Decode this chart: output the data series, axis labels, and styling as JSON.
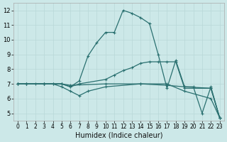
{
  "xlabel": "Humidex (Indice chaleur)",
  "xlim": [
    -0.5,
    23.5
  ],
  "ylim": [
    4.5,
    12.5
  ],
  "xticks": [
    0,
    1,
    2,
    3,
    4,
    5,
    6,
    7,
    8,
    9,
    10,
    11,
    12,
    13,
    14,
    15,
    16,
    17,
    18,
    19,
    20,
    21,
    22,
    23
  ],
  "yticks": [
    5,
    6,
    7,
    8,
    9,
    10,
    11,
    12
  ],
  "bg_color": "#cce8e8",
  "line_color": "#2a7070",
  "grid_color": "#b8d8d8",
  "series": [
    {
      "x": [
        0,
        1,
        2,
        3,
        4,
        5,
        6,
        7,
        8,
        9,
        10,
        11,
        12,
        13,
        14,
        15,
        16,
        17,
        18,
        19,
        20,
        21,
        22,
        23
      ],
      "y": [
        7,
        7,
        7,
        7,
        7,
        7,
        6.8,
        7.2,
        8.9,
        9.8,
        10.5,
        10.5,
        12.0,
        11.8,
        11.5,
        11.1,
        9.0,
        6.7,
        8.6,
        6.8,
        6.8,
        5.0,
        6.8,
        4.7
      ]
    },
    {
      "x": [
        0,
        1,
        3,
        5,
        6,
        7,
        10,
        11,
        12,
        13,
        14,
        15,
        16,
        17,
        18,
        19,
        22,
        23
      ],
      "y": [
        7,
        7,
        7,
        7,
        6.8,
        7.0,
        7.3,
        7.6,
        7.9,
        8.1,
        8.4,
        8.5,
        8.5,
        8.5,
        8.5,
        6.7,
        6.7,
        4.7
      ]
    },
    {
      "x": [
        0,
        1,
        3,
        4,
        5,
        6,
        7,
        8,
        10,
        14,
        17,
        19,
        22,
        23
      ],
      "y": [
        7,
        7,
        7,
        7,
        6.8,
        6.5,
        6.2,
        6.5,
        6.8,
        7.0,
        7.0,
        6.5,
        6.0,
        4.7
      ]
    },
    {
      "x": [
        0,
        1,
        3,
        5,
        6,
        10,
        14,
        17,
        19,
        22,
        23
      ],
      "y": [
        7,
        7,
        7,
        7,
        6.9,
        7.0,
        7.0,
        6.9,
        6.8,
        6.7,
        4.7
      ]
    }
  ]
}
